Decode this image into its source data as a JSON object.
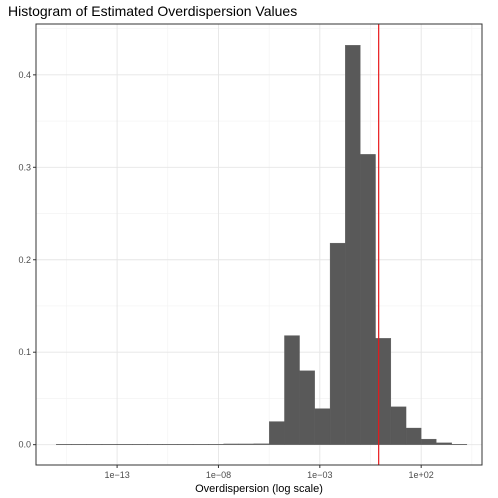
{
  "chart_data": {
    "type": "bar",
    "title": "Histogram of Estimated Overdispersion Values",
    "xlabel": "Overdispersion (log scale)",
    "ylabel": "",
    "x_scale": "log10",
    "xlim": [
      1e-17,
      100000.0
    ],
    "ylim": [
      -0.022,
      0.455
    ],
    "x_ticks": [
      1e-13,
      1e-08,
      0.001,
      100.0
    ],
    "x_tick_labels": [
      "1e−13",
      "1e−08",
      "1e−03",
      "1e+02"
    ],
    "y_ticks": [
      0.0,
      0.1,
      0.2,
      0.3,
      0.4
    ],
    "y_tick_labels": [
      "0.0",
      "0.1",
      "0.2",
      "0.3",
      "0.4"
    ],
    "bin_width_log10": 0.75,
    "bins": [
      {
        "x_left": 1e-16,
        "x_right": 5.6e-16,
        "value": 0.0005
      },
      {
        "x_left": 5.6e-16,
        "x_right": 3.2e-15,
        "value": 0.0005
      },
      {
        "x_left": 3.2e-15,
        "x_right": 1.8e-14,
        "value": 0.0005
      },
      {
        "x_left": 1.8e-14,
        "x_right": 1e-13,
        "value": 0.0005
      },
      {
        "x_left": 1e-13,
        "x_right": 5.6e-13,
        "value": 0.0005
      },
      {
        "x_left": 5.6e-13,
        "x_right": 3.2e-12,
        "value": 0.0005
      },
      {
        "x_left": 3.2e-12,
        "x_right": 1.8e-11,
        "value": 0.0005
      },
      {
        "x_left": 1.8e-11,
        "x_right": 1e-10,
        "value": 0.0005
      },
      {
        "x_left": 1e-10,
        "x_right": 5.6e-10,
        "value": 0.0005
      },
      {
        "x_left": 5.6e-10,
        "x_right": 3.2e-09,
        "value": 0.0005
      },
      {
        "x_left": 3.2e-09,
        "x_right": 1.8e-08,
        "value": 0.0005
      },
      {
        "x_left": 1.8e-08,
        "x_right": 1e-07,
        "value": 0.0008
      },
      {
        "x_left": 1e-07,
        "x_right": 5.6e-07,
        "value": 0.0008
      },
      {
        "x_left": 5.6e-07,
        "x_right": 3.2e-06,
        "value": 0.001
      },
      {
        "x_left": 3.2e-06,
        "x_right": 1.8e-05,
        "value": 0.025
      },
      {
        "x_left": 1.8e-05,
        "x_right": 0.0001,
        "value": 0.118
      },
      {
        "x_left": 0.0001,
        "x_right": 0.00056,
        "value": 0.08
      },
      {
        "x_left": 0.00056,
        "x_right": 0.0032,
        "value": 0.039
      },
      {
        "x_left": 0.0032,
        "x_right": 0.018,
        "value": 0.218
      },
      {
        "x_left": 0.018,
        "x_right": 0.1,
        "value": 0.432
      },
      {
        "x_left": 0.1,
        "x_right": 0.56,
        "value": 0.314
      },
      {
        "x_left": 0.56,
        "x_right": 3.2,
        "value": 0.115
      },
      {
        "x_left": 3.2,
        "x_right": 18.0,
        "value": 0.041
      },
      {
        "x_left": 18.0,
        "x_right": 100.0,
        "value": 0.018
      },
      {
        "x_left": 100.0,
        "x_right": 560.0,
        "value": 0.006
      },
      {
        "x_left": 560.0,
        "x_right": 3200.0,
        "value": 0.002
      },
      {
        "x_left": 3200.0,
        "x_right": 18000.0,
        "value": 0.0005
      }
    ],
    "reference_line": {
      "x": 0.8,
      "color": "#e8191b"
    },
    "bar_color": "#595959",
    "grid": true,
    "legend": "none"
  }
}
